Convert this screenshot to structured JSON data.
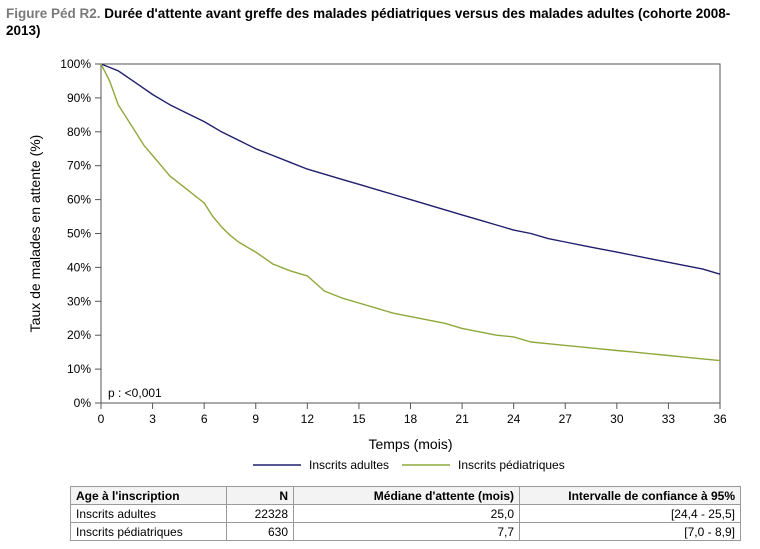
{
  "title": {
    "prefix": "Figure Péd R2.",
    "text": "Durée d'attente avant greffe des malades pédiatriques versus des malades adultes (cohorte 2008-2013)"
  },
  "chart_data": {
    "type": "line",
    "xlabel": "Temps (mois)",
    "ylabel": "Taux de malades en attente (%)",
    "xlim": [
      0,
      36
    ],
    "ylim": [
      0,
      100
    ],
    "x_ticks": [
      0,
      3,
      6,
      9,
      12,
      15,
      18,
      21,
      24,
      27,
      30,
      33,
      36
    ],
    "y_ticks": [
      0,
      10,
      20,
      30,
      40,
      50,
      60,
      70,
      80,
      90,
      100
    ],
    "y_tick_labels": [
      "0%",
      "10%",
      "20%",
      "30%",
      "40%",
      "50%",
      "60%",
      "70%",
      "80%",
      "90%",
      "100%"
    ],
    "annotation": "p : <0,001",
    "legend_position": "bottom",
    "grid": false,
    "series": [
      {
        "name": "Inscrits adultes",
        "color": "#1f1f6e",
        "x": [
          0,
          0.5,
          1,
          2,
          3,
          4,
          5,
          6,
          7,
          8,
          9,
          10,
          11,
          12,
          13,
          14,
          15,
          16,
          17,
          18,
          19,
          20,
          21,
          22,
          23,
          24,
          25,
          26,
          27,
          28,
          29,
          30,
          31,
          32,
          33,
          34,
          35,
          36
        ],
        "y": [
          100,
          99,
          98,
          94.5,
          91,
          88,
          85.5,
          83,
          80,
          77.5,
          75,
          73,
          71,
          69,
          67.5,
          66,
          64.5,
          63,
          61.5,
          60,
          58.5,
          57,
          55.5,
          54,
          52.5,
          51,
          50,
          48.5,
          47.5,
          46.5,
          45.5,
          44.5,
          43.5,
          42.5,
          41.5,
          40.5,
          39.5,
          38
        ]
      },
      {
        "name": "Inscrits pédiatriques",
        "color": "#8ea83a",
        "x": [
          0,
          0.5,
          1,
          1.5,
          2,
          2.5,
          3,
          3.5,
          4,
          4.5,
          5,
          5.5,
          6,
          6.5,
          7,
          7.5,
          8,
          8.5,
          9,
          10,
          11,
          12,
          13,
          14,
          15,
          16,
          17,
          18,
          19,
          20,
          21,
          22,
          23,
          24,
          25,
          26,
          27,
          28,
          29,
          30,
          31,
          32,
          33,
          34,
          35,
          36
        ],
        "y": [
          100,
          95,
          88,
          84,
          80,
          76,
          73,
          70,
          67,
          65,
          63,
          61,
          59,
          55,
          52,
          49.5,
          47.5,
          46,
          44.5,
          41,
          39,
          37.5,
          33,
          31,
          29.5,
          28,
          26.5,
          25.5,
          24.5,
          23.5,
          22,
          21,
          20,
          19.5,
          18,
          17.5,
          17,
          16.5,
          16,
          15.5,
          15,
          14.5,
          14,
          13.5,
          13,
          12.5
        ]
      }
    ]
  },
  "table": {
    "headers": [
      "Age à l'inscription",
      "N",
      "Médiane d'attente (mois)",
      "Intervalle de confiance à 95%"
    ],
    "rows": [
      [
        "Inscrits adultes",
        "22328",
        "25,0",
        "[24,4 - 25,5]"
      ],
      [
        "Inscrits pédiatriques",
        "630",
        "7,7",
        "[7,0 - 8,9]"
      ]
    ]
  }
}
